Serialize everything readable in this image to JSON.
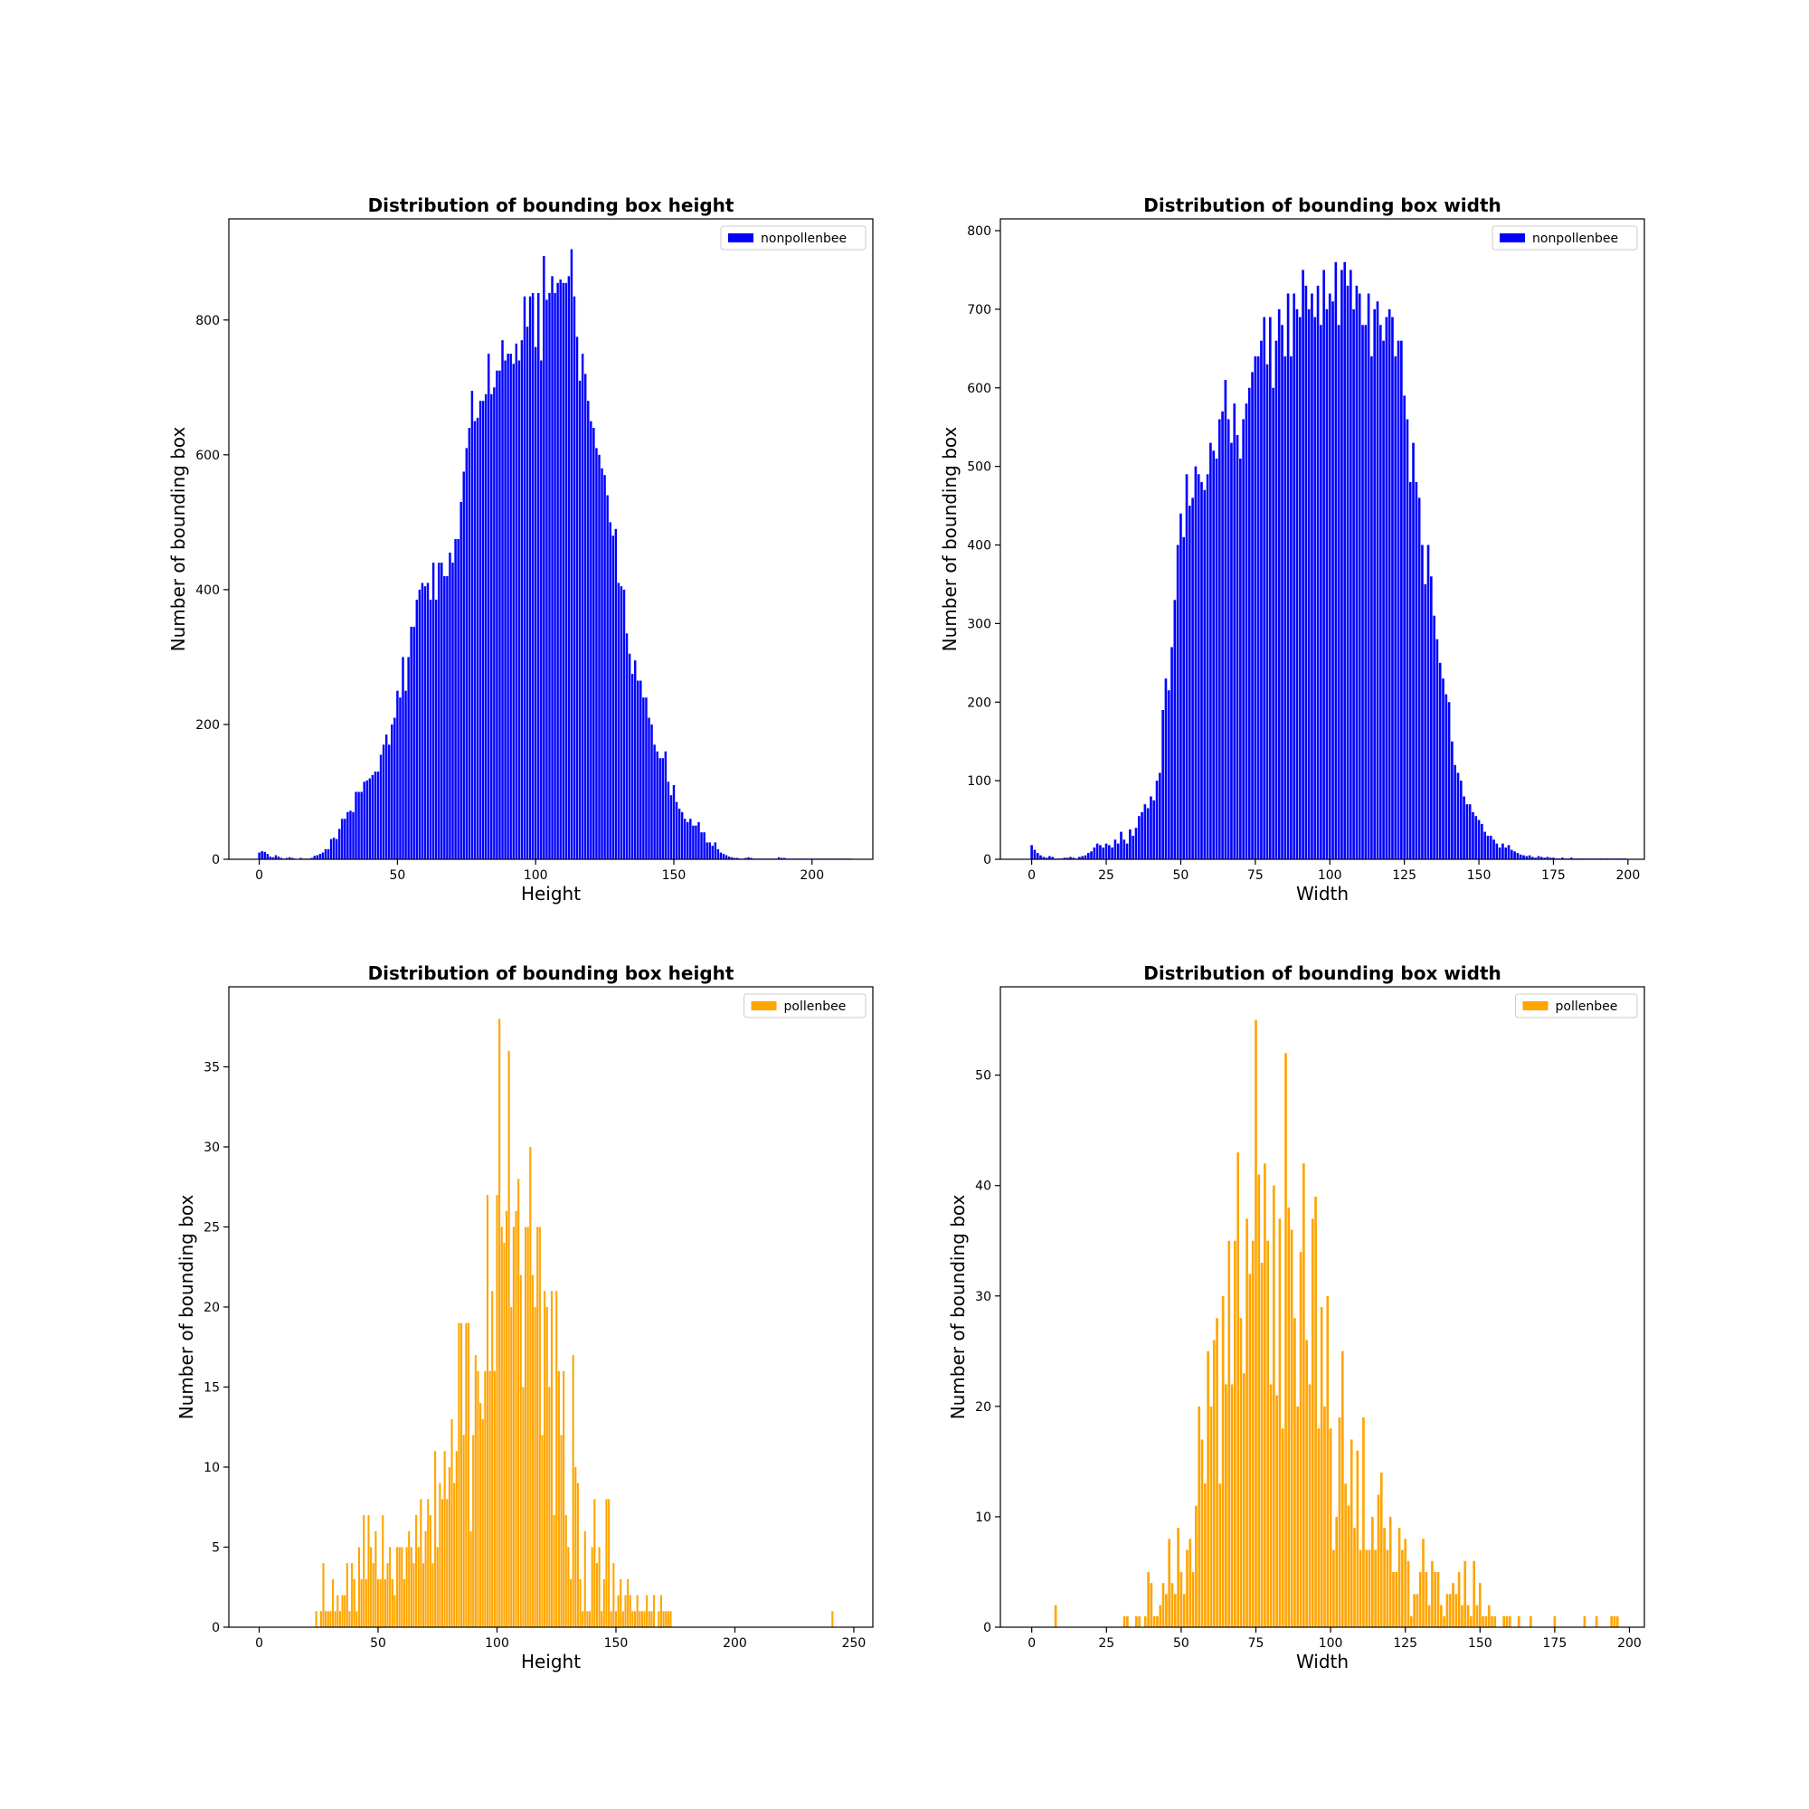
{
  "chart_data": [
    {
      "type": "bar",
      "title": "Distribution of bounding box height",
      "xlabel": "Height",
      "ylabel": "Number of bounding box",
      "xlim": [
        -11,
        222
      ],
      "ylim": [
        0,
        950
      ],
      "xticks": [
        0,
        50,
        100,
        150,
        200
      ],
      "yticks": [
        0,
        200,
        400,
        600,
        800
      ],
      "legend": {
        "label": "nonpollenbee",
        "position": "top-right"
      },
      "color": "#0000ff",
      "bar_width": 0.8,
      "x_start": 0,
      "values": [
        10,
        12,
        11,
        8,
        4,
        3,
        6,
        4,
        2,
        1,
        2,
        3,
        2,
        1,
        0,
        2,
        1,
        1,
        1,
        2,
        5,
        6,
        8,
        10,
        15,
        15,
        30,
        32,
        30,
        45,
        60,
        60,
        70,
        72,
        70,
        100,
        100,
        100,
        115,
        117,
        120,
        125,
        130,
        130,
        155,
        170,
        185,
        170,
        200,
        210,
        250,
        240,
        300,
        250,
        300,
        345,
        345,
        385,
        400,
        410,
        405,
        410,
        385,
        440,
        385,
        440,
        440,
        420,
        420,
        455,
        440,
        475,
        475,
        530,
        575,
        610,
        640,
        695,
        650,
        655,
        680,
        680,
        690,
        750,
        690,
        700,
        725,
        725,
        770,
        740,
        750,
        750,
        735,
        765,
        740,
        770,
        835,
        790,
        835,
        840,
        760,
        840,
        740,
        895,
        830,
        840,
        865,
        840,
        855,
        860,
        855,
        855,
        865,
        905,
        835,
        775,
        710,
        750,
        720,
        680,
        650,
        640,
        610,
        600,
        580,
        570,
        540,
        500,
        480,
        490,
        410,
        405,
        400,
        335,
        305,
        275,
        295,
        265,
        265,
        240,
        240,
        210,
        200,
        170,
        160,
        150,
        150,
        160,
        115,
        95,
        110,
        85,
        75,
        70,
        60,
        55,
        60,
        50,
        50,
        55,
        40,
        40,
        25,
        25,
        20,
        25,
        15,
        10,
        8,
        6,
        4,
        3,
        2,
        2,
        1,
        1,
        2,
        3,
        2,
        1,
        1,
        1,
        1,
        1,
        1,
        1,
        1,
        1,
        3,
        2,
        2,
        1,
        1,
        1,
        1,
        1,
        1,
        1,
        1,
        1,
        1,
        1,
        1,
        1,
        1,
        1,
        1,
        1,
        1,
        1,
        1,
        1,
        1,
        1,
        1
      ]
    },
    {
      "type": "bar",
      "title": "Distribution of bounding box width",
      "xlabel": "Width",
      "ylabel": "Number of bounding box",
      "xlim": [
        -10.5,
        205.5
      ],
      "ylim": [
        0,
        815
      ],
      "xticks": [
        0,
        25,
        50,
        75,
        100,
        125,
        150,
        175,
        200
      ],
      "yticks": [
        0,
        100,
        200,
        300,
        400,
        500,
        600,
        700,
        800
      ],
      "legend": {
        "label": "nonpollenbee",
        "position": "top-right"
      },
      "color": "#0000ff",
      "bar_width": 0.8,
      "x_start": 0,
      "values": [
        18,
        12,
        8,
        5,
        3,
        2,
        4,
        3,
        1,
        1,
        1,
        2,
        2,
        3,
        2,
        1,
        3,
        4,
        5,
        8,
        10,
        15,
        20,
        18,
        15,
        20,
        18,
        15,
        25,
        20,
        35,
        25,
        20,
        38,
        30,
        40,
        55,
        60,
        70,
        65,
        80,
        75,
        100,
        110,
        190,
        230,
        215,
        270,
        330,
        400,
        440,
        410,
        490,
        450,
        460,
        500,
        490,
        480,
        470,
        490,
        530,
        520,
        510,
        560,
        570,
        610,
        560,
        530,
        580,
        540,
        510,
        560,
        580,
        600,
        620,
        640,
        640,
        660,
        690,
        630,
        690,
        600,
        660,
        700,
        680,
        640,
        720,
        640,
        720,
        700,
        690,
        750,
        730,
        700,
        720,
        690,
        730,
        680,
        750,
        700,
        720,
        710,
        760,
        680,
        750,
        760,
        730,
        750,
        700,
        730,
        720,
        680,
        680,
        720,
        640,
        700,
        710,
        680,
        660,
        690,
        700,
        690,
        640,
        660,
        660,
        590,
        560,
        480,
        530,
        480,
        460,
        400,
        350,
        400,
        360,
        310,
        280,
        250,
        230,
        210,
        200,
        150,
        120,
        110,
        100,
        80,
        70,
        70,
        60,
        55,
        50,
        45,
        35,
        30,
        30,
        25,
        20,
        15,
        20,
        15,
        18,
        12,
        10,
        8,
        6,
        5,
        4,
        5,
        3,
        2,
        4,
        3,
        2,
        3,
        2,
        2,
        1,
        1,
        2,
        1,
        1,
        2,
        1,
        1,
        1,
        1,
        1,
        1,
        1,
        1,
        1,
        1,
        1,
        1,
        1,
        1,
        1,
        1,
        1,
        1
      ]
    },
    {
      "type": "bar",
      "title": "Distribution of bounding box height",
      "xlabel": "Height",
      "ylabel": "Number of bounding box",
      "xlim": [
        -12.75,
        258
      ],
      "ylim": [
        0,
        40
      ],
      "xticks": [
        0,
        50,
        100,
        150,
        200,
        250
      ],
      "yticks": [
        0,
        5,
        10,
        15,
        20,
        25,
        30,
        35
      ],
      "legend": {
        "label": "pollenbee",
        "position": "top-right"
      },
      "color": "#ffa500",
      "bar_width": 0.8,
      "x_start": 24,
      "values": [
        1,
        0,
        1,
        4,
        1,
        1,
        1,
        3,
        1,
        2,
        1,
        2,
        2,
        4,
        1,
        4,
        3,
        1,
        5,
        3,
        7,
        3,
        7,
        5,
        4,
        6,
        3,
        3,
        7,
        3,
        4,
        5,
        3,
        2,
        5,
        5,
        5,
        3,
        5,
        6,
        5,
        4,
        7,
        5,
        8,
        4,
        6,
        8,
        7,
        4,
        11,
        5,
        9,
        8,
        11,
        8,
        10,
        13,
        9,
        11,
        19,
        19,
        12,
        19,
        19,
        6,
        12,
        17,
        16,
        14,
        13,
        16,
        27,
        16,
        21,
        16,
        27,
        38,
        25,
        24,
        26,
        36,
        20,
        25,
        26,
        28,
        22,
        15,
        25,
        25,
        30,
        22,
        20,
        25,
        25,
        12,
        21,
        20,
        15,
        21,
        7,
        21,
        16,
        12,
        16,
        7,
        5,
        3,
        17,
        10,
        9,
        3,
        1,
        6,
        1,
        1,
        5,
        8,
        4,
        5,
        1,
        3,
        8,
        8,
        1,
        4,
        1,
        2,
        3,
        1,
        2,
        3,
        2,
        1,
        1,
        2,
        1,
        1,
        1,
        2,
        1,
        1,
        2,
        0,
        1,
        2,
        1,
        1,
        1,
        1,
        0,
        0,
        0,
        0,
        0,
        0,
        0,
        0,
        0,
        0,
        0,
        0,
        0,
        0,
        0,
        0,
        0,
        0,
        0,
        0,
        0,
        0,
        0,
        0,
        0,
        0,
        0,
        0,
        0,
        0,
        0,
        0,
        0,
        0,
        0,
        0,
        0,
        0,
        0,
        0,
        0,
        0,
        0,
        0,
        0,
        0,
        0,
        0,
        0,
        0,
        0,
        0,
        0,
        0,
        0,
        0,
        0,
        0,
        0,
        0,
        0,
        0,
        0,
        0,
        0,
        0,
        0,
        1
      ]
    },
    {
      "type": "bar",
      "title": "Distribution of bounding box width",
      "xlabel": "Width",
      "ylabel": "Number of bounding box",
      "xlim": [
        -10.5,
        205
      ],
      "ylim": [
        0,
        58
      ],
      "xticks": [
        0,
        25,
        50,
        75,
        100,
        125,
        150,
        175,
        200
      ],
      "yticks": [
        0,
        10,
        20,
        30,
        40,
        50
      ],
      "legend": {
        "label": "pollenbee",
        "position": "top-right"
      },
      "color": "#ffa500",
      "bar_width": 0.8,
      "x_start": 8,
      "values": [
        2,
        0,
        0,
        0,
        0,
        0,
        0,
        0,
        0,
        0,
        0,
        0,
        0,
        0,
        0,
        0,
        0,
        0,
        0,
        0,
        0,
        0,
        0,
        1,
        1,
        0,
        0,
        1,
        1,
        0,
        1,
        5,
        4,
        1,
        1,
        2,
        4,
        3,
        8,
        4,
        3,
        9,
        5,
        3,
        7,
        8,
        5,
        11,
        20,
        17,
        13,
        25,
        20,
        26,
        28,
        13,
        30,
        22,
        35,
        22,
        35,
        43,
        28,
        23,
        37,
        32,
        35,
        55,
        41,
        33,
        42,
        35,
        22,
        40,
        21,
        37,
        18,
        52,
        38,
        36,
        28,
        20,
        34,
        42,
        26,
        22,
        37,
        39,
        18,
        29,
        20,
        30,
        18,
        7,
        10,
        19,
        25,
        13,
        11,
        17,
        9,
        16,
        7,
        19,
        7,
        7,
        10,
        7,
        12,
        14,
        9,
        7,
        10,
        5,
        5,
        9,
        7,
        8,
        6,
        1,
        3,
        3,
        5,
        8,
        5,
        2,
        6,
        5,
        5,
        2,
        1,
        3,
        3,
        4,
        3,
        5,
        2,
        6,
        2,
        1,
        6,
        2,
        4,
        1,
        1,
        2,
        1,
        1,
        0,
        0,
        1,
        1,
        1,
        0,
        0,
        1,
        0,
        0,
        0,
        1,
        0,
        0,
        0,
        0,
        0,
        0,
        0,
        1,
        0,
        0,
        0,
        0,
        0,
        0,
        0,
        0,
        0,
        1,
        0,
        0,
        0,
        1,
        0,
        0,
        0,
        0,
        1,
        1,
        1
      ]
    }
  ]
}
